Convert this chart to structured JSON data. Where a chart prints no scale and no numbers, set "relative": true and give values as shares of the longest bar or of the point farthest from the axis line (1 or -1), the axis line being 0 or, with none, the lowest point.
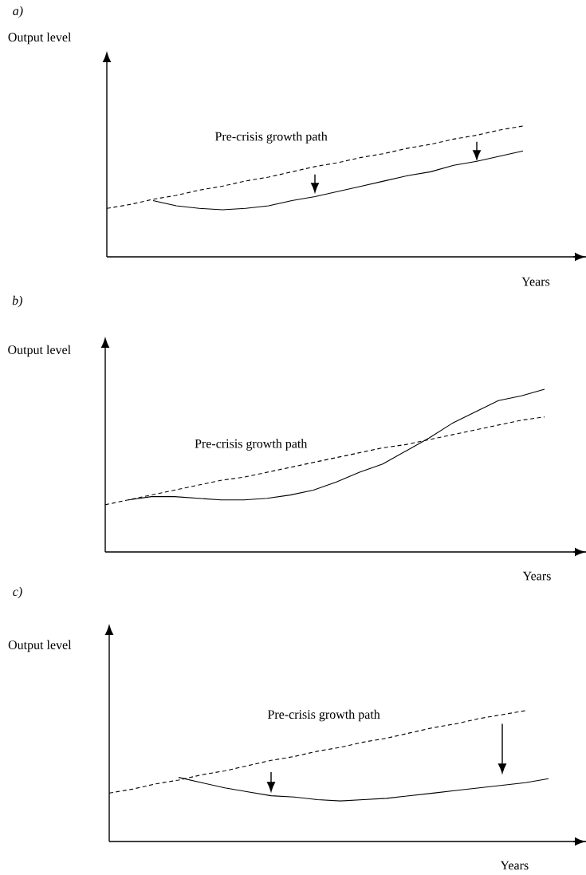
{
  "chart_data": [
    {
      "type": "line",
      "ylabel": "Output level",
      "xlabel": "Years",
      "annotations": [
        "a)",
        "Pre-crisis growth path"
      ],
      "relative": true,
      "marker": "none",
      "categories": [
        null,
        null,
        null,
        null,
        null,
        null,
        null,
        null,
        null,
        null,
        null,
        null,
        null,
        null,
        null,
        null,
        null,
        null,
        null,
        null,
        null
      ],
      "series": [
        {
          "color": "#000000",
          "line_style": "dashed",
          "values": [
            0.37,
            0.4,
            0.44,
            0.47,
            0.51,
            0.54,
            0.58,
            0.61,
            0.65,
            0.69,
            0.72,
            0.76,
            0.79,
            0.83,
            0.86,
            0.9,
            0.93,
            0.97,
            1.0,
            null,
            null
          ]
        },
        {
          "color": "#000000",
          "line_style": "solid",
          "values": [
            null,
            null,
            0.43,
            0.39,
            0.37,
            0.36,
            0.37,
            0.39,
            0.43,
            0.46,
            0.5,
            0.54,
            0.58,
            0.62,
            0.65,
            0.7,
            0.73,
            0.77,
            0.81,
            null,
            null
          ]
        }
      ]
    },
    {
      "type": "line",
      "ylabel": "Output level",
      "xlabel": "Years",
      "annotations": [
        "b)",
        "Pre-crisis growth path"
      ],
      "relative": true,
      "marker": "none",
      "categories": [
        null,
        null,
        null,
        null,
        null,
        null,
        null,
        null,
        null,
        null,
        null,
        null,
        null,
        null,
        null,
        null,
        null,
        null,
        null,
        null,
        null
      ],
      "series": [
        {
          "color": "#000000",
          "line_style": "dashed",
          "values": [
            0.29,
            0.32,
            0.35,
            0.38,
            0.41,
            0.44,
            0.46,
            0.49,
            0.52,
            0.55,
            0.58,
            0.61,
            0.64,
            0.66,
            0.69,
            0.72,
            0.75,
            0.78,
            0.81,
            0.83,
            null
          ]
        },
        {
          "color": "#000000",
          "line_style": "solid",
          "values": [
            null,
            0.32,
            0.34,
            0.34,
            0.33,
            0.32,
            0.32,
            0.33,
            0.35,
            0.38,
            0.43,
            0.49,
            0.54,
            0.62,
            0.7,
            0.79,
            0.86,
            0.93,
            0.96,
            1.0,
            null
          ]
        }
      ]
    },
    {
      "type": "line",
      "ylabel": "Output level",
      "xlabel": "Years",
      "annotations": [
        "c)",
        "Pre-crisis growth path"
      ],
      "relative": true,
      "marker": "none",
      "categories": [
        null,
        null,
        null,
        null,
        null,
        null,
        null,
        null,
        null,
        null,
        null,
        null,
        null,
        null,
        null,
        null,
        null,
        null,
        null,
        null,
        null
      ],
      "series": [
        {
          "color": "#000000",
          "line_style": "dashed",
          "values": [
            0.37,
            0.4,
            0.44,
            0.47,
            0.51,
            0.54,
            0.58,
            0.62,
            0.65,
            0.69,
            0.72,
            0.76,
            0.79,
            0.83,
            0.87,
            0.9,
            0.94,
            0.97,
            1.0,
            null,
            null
          ]
        },
        {
          "color": "#000000",
          "line_style": "solid",
          "values": [
            null,
            null,
            null,
            0.49,
            0.45,
            0.41,
            0.38,
            0.35,
            0.34,
            0.32,
            0.31,
            0.32,
            0.33,
            0.35,
            0.37,
            0.39,
            0.41,
            0.43,
            0.45,
            0.48,
            null
          ]
        }
      ]
    }
  ]
}
